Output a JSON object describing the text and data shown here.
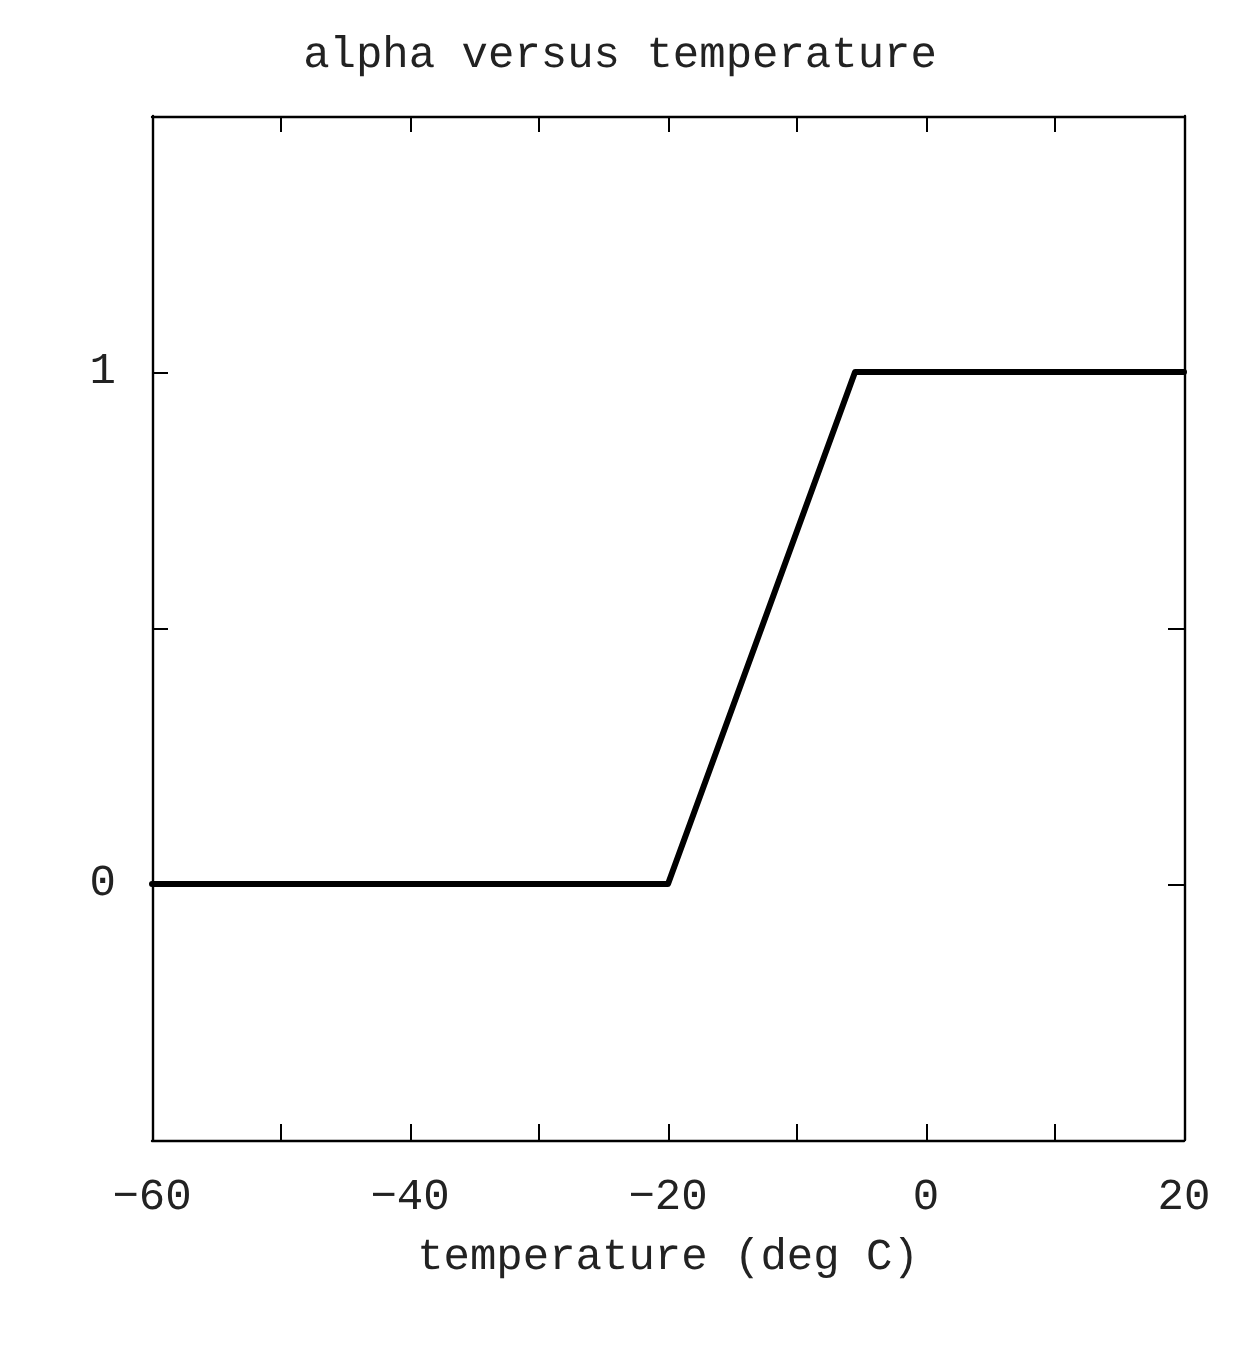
{
  "chart_data": {
    "type": "line",
    "title": "alpha versus temperature",
    "xlabel": "temperature (deg C)",
    "x": [
      -60,
      -20,
      -5.5,
      20
    ],
    "series": [
      {
        "color": "#000000",
        "values": [
          0,
          0,
          1,
          1
        ]
      }
    ],
    "xlim": [
      -60,
      20
    ],
    "xticks": [
      -60,
      {
        "value": -50,
        "label": null
      },
      -40,
      {
        "value": -30,
        "label": null
      },
      -20,
      {
        "value": -10,
        "label": null
      },
      0,
      {
        "value": 10,
        "label": null
      },
      20
    ],
    "ylim": [
      -0.5,
      1.5
    ],
    "yticks": [
      {
        "value": -0.5,
        "label": null
      },
      0,
      {
        "value": 0.5,
        "label": null
      },
      1,
      {
        "value": 1.5,
        "label": null
      }
    ],
    "grid": false,
    "marker": "none",
    "line_style": "solid"
  }
}
